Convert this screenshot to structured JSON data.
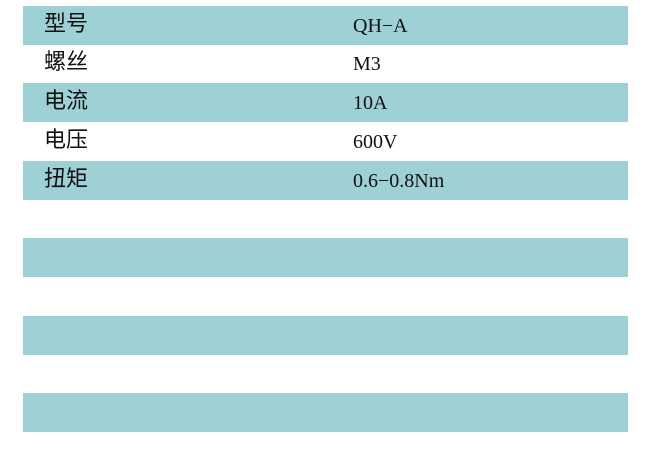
{
  "table": {
    "rows": [
      {
        "label": "型号",
        "value": "QH−A"
      },
      {
        "label": "螺丝",
        "value": "M3"
      },
      {
        "label": "电流",
        "value": "10A"
      },
      {
        "label": "电压",
        "value": "600V"
      },
      {
        "label": "扭矩",
        "value": "0.6−0.8Nm"
      }
    ]
  },
  "colors": {
    "stripe": "#9dd1d6",
    "text": "#111111"
  }
}
